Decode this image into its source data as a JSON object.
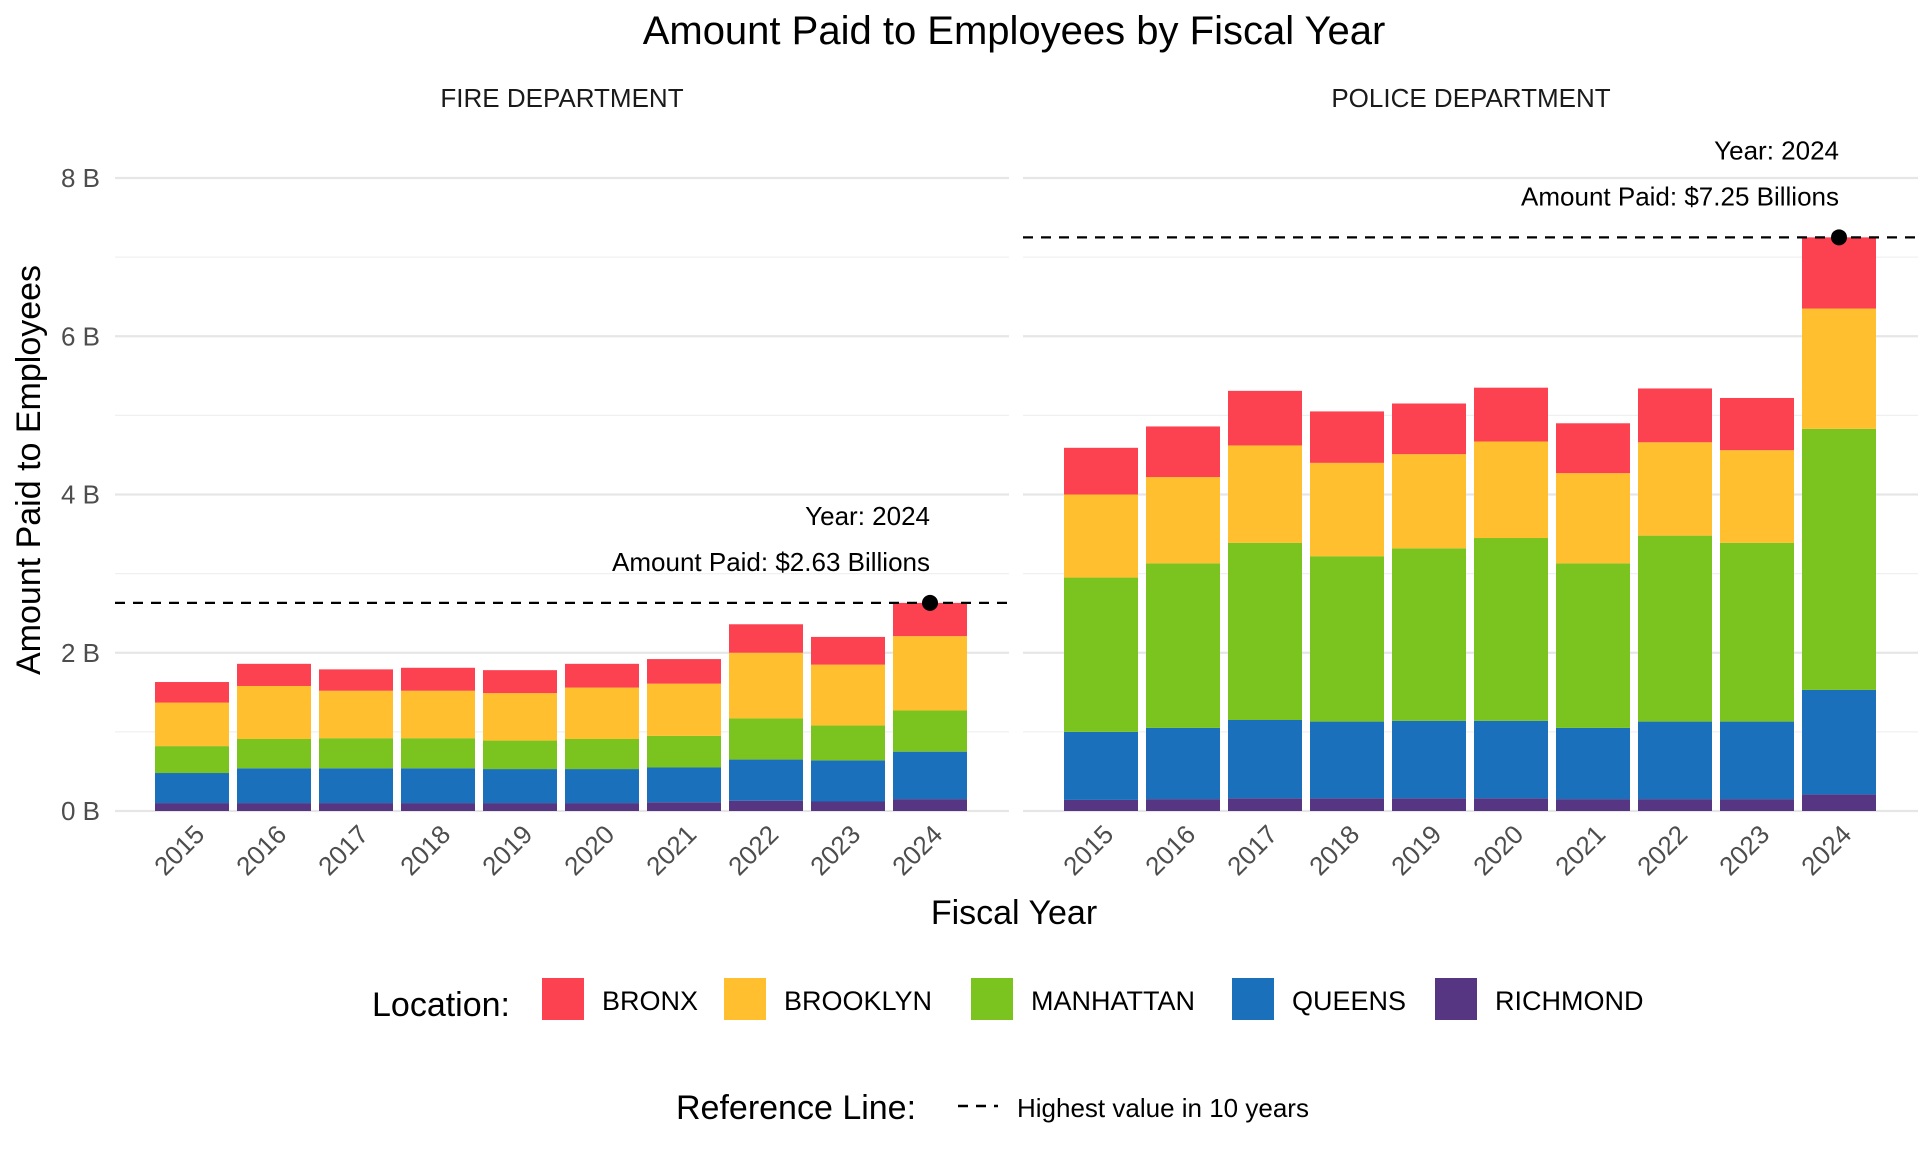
{
  "chart_data": {
    "type": "bar",
    "stacked": true,
    "title": "Amount Paid to Employees by Fiscal Year",
    "xlabel": "Fiscal Year",
    "ylabel": "Amount Paid to Employees",
    "ylim": [
      0,
      8
    ],
    "y_ticks": [
      "0 B",
      "2 B",
      "4 B",
      "6 B",
      "8 B"
    ],
    "y_tick_values": [
      0,
      2,
      4,
      6,
      8
    ],
    "categories": [
      "2015",
      "2016",
      "2017",
      "2018",
      "2019",
      "2020",
      "2021",
      "2022",
      "2023",
      "2024"
    ],
    "legend": {
      "title": "Location:",
      "position": "bottom",
      "items": [
        {
          "name": "BRONX",
          "color": "#FC4150"
        },
        {
          "name": "BROOKLYN",
          "color": "#FFBF2E"
        },
        {
          "name": "MANHATTAN",
          "color": "#7BC31F"
        },
        {
          "name": "QUEENS",
          "color": "#1A70BA"
        },
        {
          "name": "RICHMOND",
          "color": "#563582"
        }
      ]
    },
    "reference_legend": {
      "title": "Reference Line:",
      "label": "Highest value in 10 years"
    },
    "grid": true,
    "panels": [
      {
        "name": "FIRE DEPARTMENT",
        "series": [
          {
            "name": "RICHMOND",
            "values": [
              0.1,
              0.1,
              0.1,
              0.1,
              0.1,
              0.1,
              0.11,
              0.13,
              0.12,
              0.15
            ]
          },
          {
            "name": "QUEENS",
            "values": [
              0.38,
              0.44,
              0.44,
              0.44,
              0.43,
              0.43,
              0.44,
              0.52,
              0.52,
              0.6
            ]
          },
          {
            "name": "MANHATTAN",
            "values": [
              0.34,
              0.37,
              0.38,
              0.38,
              0.36,
              0.38,
              0.4,
              0.52,
              0.44,
              0.52
            ]
          },
          {
            "name": "BROOKLYN",
            "values": [
              0.55,
              0.67,
              0.6,
              0.6,
              0.6,
              0.65,
              0.66,
              0.83,
              0.77,
              0.94
            ]
          },
          {
            "name": "BRONX",
            "values": [
              0.26,
              0.28,
              0.27,
              0.29,
              0.29,
              0.3,
              0.31,
              0.36,
              0.35,
              0.42
            ]
          }
        ],
        "reference_value": 2.63,
        "annotation": {
          "line1": "Year: 2024",
          "line2": "Amount Paid: $2.63 Billions"
        }
      },
      {
        "name": "POLICE DEPARTMENT",
        "series": [
          {
            "name": "RICHMOND",
            "values": [
              0.14,
              0.15,
              0.16,
              0.16,
              0.16,
              0.16,
              0.15,
              0.15,
              0.15,
              0.21
            ]
          },
          {
            "name": "QUEENS",
            "values": [
              0.86,
              0.9,
              0.99,
              0.97,
              0.98,
              0.98,
              0.9,
              0.98,
              0.98,
              1.32
            ]
          },
          {
            "name": "MANHATTAN",
            "values": [
              1.95,
              2.08,
              2.24,
              2.09,
              2.18,
              2.31,
              2.08,
              2.35,
              2.26,
              3.3
            ]
          },
          {
            "name": "BROOKLYN",
            "values": [
              1.05,
              1.09,
              1.23,
              1.18,
              1.19,
              1.22,
              1.14,
              1.18,
              1.17,
              1.52
            ]
          },
          {
            "name": "BRONX",
            "values": [
              0.59,
              0.64,
              0.69,
              0.65,
              0.64,
              0.68,
              0.63,
              0.68,
              0.66,
              0.9
            ]
          }
        ],
        "reference_value": 7.25,
        "annotation": {
          "line1": "Year: 2024",
          "line2": "Amount Paid: $7.25 Billions"
        }
      }
    ]
  }
}
